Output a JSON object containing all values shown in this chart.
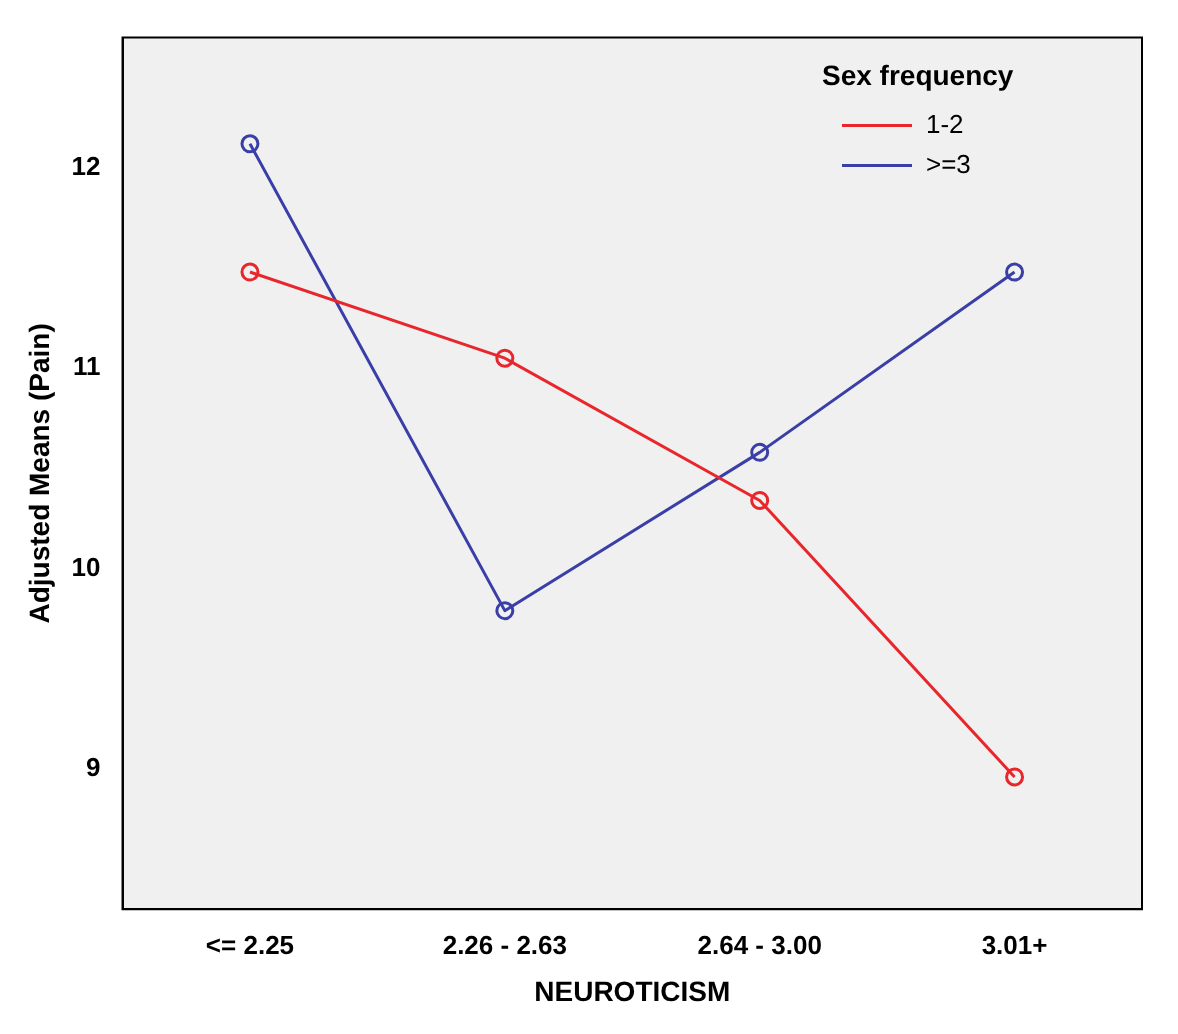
{
  "chart_data": {
    "type": "line",
    "xlabel": "NEUROTICISM",
    "ylabel": "Adjusted Means (Pain)",
    "legend_title": "Sex frequency",
    "categories": [
      "<= 2.25",
      "2.26 - 2.63",
      "2.64 - 3.00",
      "3.01+"
    ],
    "series": [
      {
        "name": "1-2",
        "color": "#e8262b",
        "values": [
          11.48,
          11.05,
          10.34,
          8.96
        ]
      },
      {
        "name": ">=3",
        "color": "#3a3fa8",
        "values": [
          12.12,
          9.79,
          10.58,
          11.48
        ]
      }
    ],
    "ylim": [
      8.3,
      12.65
    ],
    "yticks": [
      9,
      10,
      11,
      12
    ],
    "grid": false,
    "legend": "top right",
    "marker": "circle",
    "line_style": "solid"
  }
}
